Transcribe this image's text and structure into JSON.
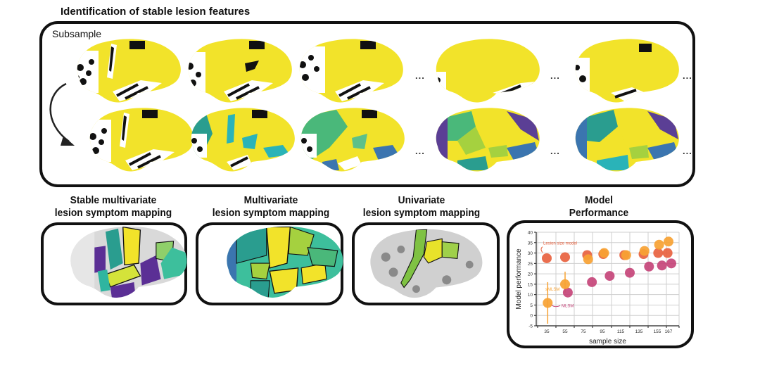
{
  "figure": {
    "top_panel": {
      "title": "Identification of stable lesion features",
      "subsample_label": "Subsample",
      "ellipsis": "...",
      "row_top_colors": {
        "lesion": "#f2e32a",
        "cortex_pattern": "black-white"
      },
      "row_bottom_colormap": [
        "#f2e32a",
        "#a5d13f",
        "#4ab87a",
        "#2a9d8f",
        "#3b75af",
        "#5b3f95"
      ]
    },
    "bottom_panels": [
      {
        "title_line1": "Stable multivariate",
        "title_line2": "lesion symptom mapping"
      },
      {
        "title_line1": "Multivariate",
        "title_line2": "lesion symptom mapping"
      },
      {
        "title_line1": "Univariate",
        "title_line2": "lesion symptom mapping"
      },
      {
        "title_line1": "Model",
        "title_line2": "Performance"
      }
    ]
  },
  "chart_data": {
    "type": "scatter",
    "title": "Model Performance",
    "xlabel": "sample size",
    "ylabel": "Model performance",
    "x_ticks": [
      "35",
      "55",
      "75",
      "95",
      "115",
      "135",
      "155",
      "167"
    ],
    "y_ticks": [
      "-5",
      "0",
      "5",
      "10",
      "15",
      "20",
      "25",
      "30",
      "35",
      "40"
    ],
    "ylim": [
      -5,
      40
    ],
    "grid": true,
    "annotations": [
      "Lesion size model",
      "sMLSM",
      "MLSM"
    ],
    "series": [
      {
        "name": "Lesion size model",
        "color": "#e8623f",
        "points": [
          [
            35,
            27.5
          ],
          [
            55,
            28
          ],
          [
            79,
            29
          ],
          [
            96,
            29.5
          ],
          [
            119,
            29
          ],
          [
            140,
            29.5
          ],
          [
            156,
            30
          ],
          [
            166,
            30
          ]
        ]
      },
      {
        "name": "sMLSM",
        "color": "#f7a233",
        "points": [
          [
            36,
            6
          ],
          [
            55,
            15
          ],
          [
            80,
            27
          ],
          [
            97,
            30
          ],
          [
            121,
            29
          ],
          [
            141,
            31
          ],
          [
            157,
            34
          ],
          [
            167,
            35.5
          ]
        ]
      },
      {
        "name": "MLSM",
        "color": "#c5457a",
        "points": [
          [
            58,
            11
          ],
          [
            84,
            16
          ],
          [
            103,
            19
          ],
          [
            125,
            20.5
          ],
          [
            146,
            23.5
          ],
          [
            160,
            24
          ],
          [
            170,
            25
          ]
        ]
      }
    ],
    "error_bars": [
      {
        "series": "sMLSM",
        "x": 36,
        "y": 6,
        "low": -4,
        "high": 16
      },
      {
        "series": "sMLSM",
        "x": 55,
        "y": 15,
        "low": 11,
        "high": 21
      }
    ]
  }
}
